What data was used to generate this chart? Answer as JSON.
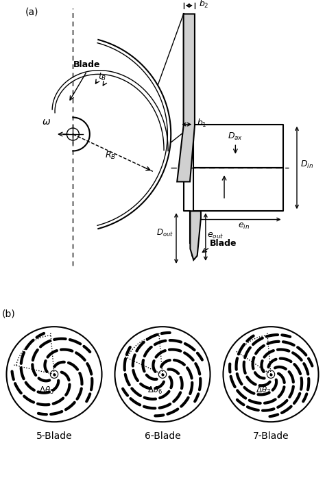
{
  "fig_width": 4.74,
  "fig_height": 7.04,
  "dpi": 100,
  "bg_color": "#ffffff",
  "num_blades": [
    5,
    6,
    7
  ],
  "blade_labels": [
    "5-Blade",
    "6-Blade",
    "7-Blade"
  ]
}
